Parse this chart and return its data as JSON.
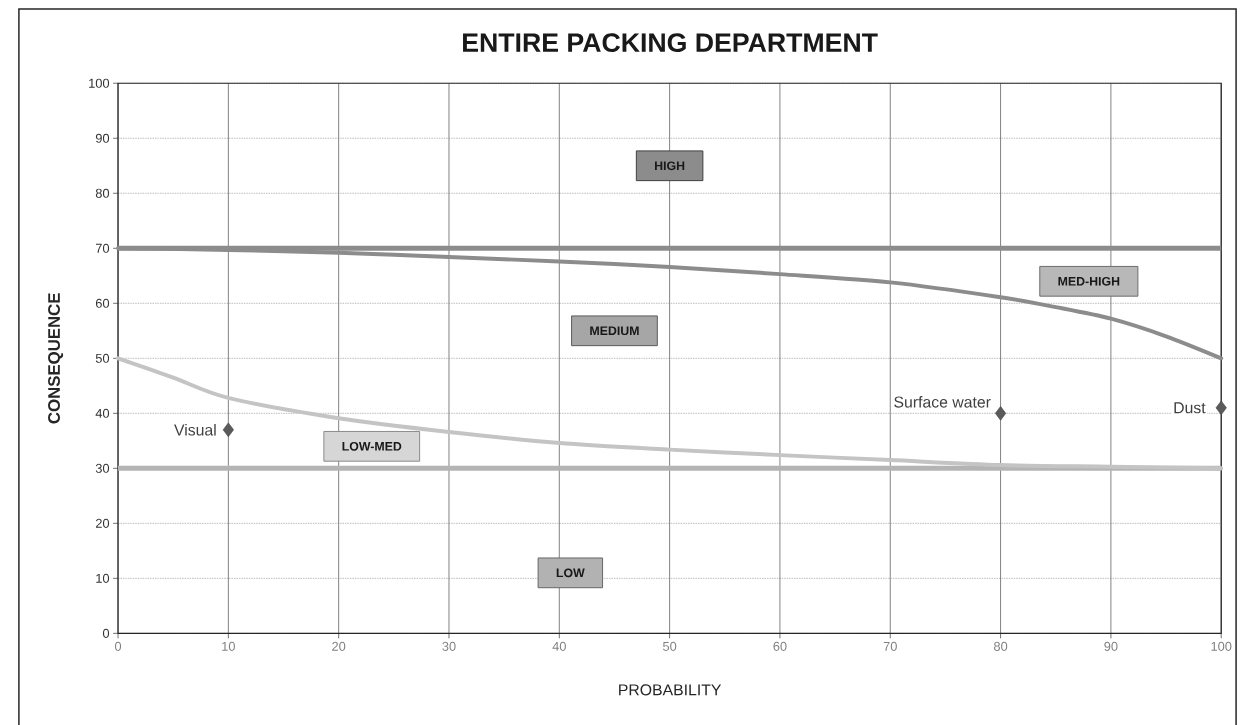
{
  "chart_data": {
    "type": "scatter",
    "title": "ENTIRE PACKING DEPARTMENT",
    "xlabel": "PROBABILITY",
    "ylabel": "CONSEQUENCE",
    "xlim": [
      0,
      100
    ],
    "ylim": [
      0,
      100
    ],
    "xticks": [
      0,
      10,
      20,
      30,
      40,
      50,
      60,
      70,
      80,
      90,
      100
    ],
    "yticks": [
      0,
      10,
      20,
      30,
      40,
      50,
      60,
      70,
      80,
      90,
      100
    ],
    "grid": true,
    "marker": "diamond",
    "series": [
      {
        "name": "Visual",
        "color": "#5a5a5a",
        "x": [
          10
        ],
        "values": [
          37
        ]
      },
      {
        "name": "Surface water",
        "color": "#5a5a5a",
        "x": [
          80
        ],
        "values": [
          40
        ]
      },
      {
        "name": "Dust",
        "color": "#5a5a5a",
        "x": [
          100
        ],
        "values": [
          41
        ]
      },
      {
        "type": "line",
        "color": "#8c8c8c",
        "marker": "none",
        "x": [
          0,
          10,
          20,
          30,
          40,
          50,
          60,
          70,
          80,
          85,
          90,
          95,
          100
        ],
        "values": [
          70,
          69.7,
          69.2,
          68.4,
          67.6,
          66.6,
          65.3,
          63.8,
          61.1,
          59.3,
          57.2,
          54,
          50
        ]
      },
      {
        "type": "line",
        "color": "#c4c4c4",
        "marker": "none",
        "x": [
          0,
          5,
          10,
          20,
          30,
          40,
          50,
          60,
          70,
          80,
          90,
          100
        ],
        "values": [
          50,
          46.5,
          42.8,
          39.1,
          36.6,
          34.6,
          33.4,
          32.4,
          31.5,
          30.6,
          30.3,
          30
        ]
      }
    ],
    "ref_lines": [
      {
        "axis": "y",
        "value": 70,
        "color": "#8c8c8c"
      },
      {
        "axis": "y",
        "value": 30,
        "color": "#b4b4b4"
      }
    ],
    "annotations": [
      "HIGH",
      "MEDIUM",
      "MED-HIGH",
      "LOW-MED",
      "LOW"
    ]
  }
}
